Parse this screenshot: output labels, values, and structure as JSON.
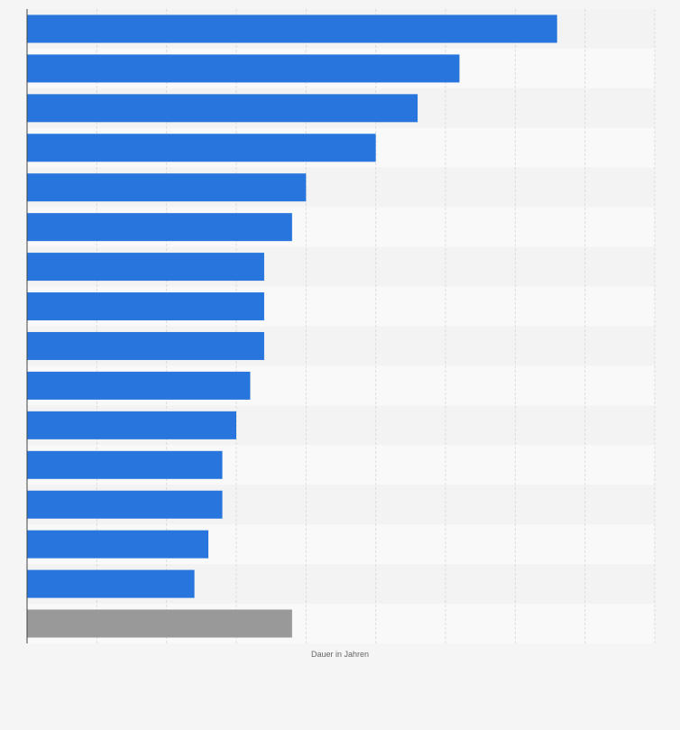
{
  "chart_data": {
    "type": "bar",
    "orientation": "horizontal",
    "xlabel": "Dauer in Jahren",
    "ylabel": "",
    "xlim": [
      0,
      9
    ],
    "grid": true,
    "legend": "none",
    "categories": [
      "",
      "",
      "",
      "",
      "",
      "",
      "",
      "",
      "",
      "",
      "",
      "",
      "",
      "",
      "",
      ""
    ],
    "values": [
      7.6,
      6.2,
      5.6,
      5.0,
      4.0,
      3.8,
      3.4,
      3.4,
      3.4,
      3.2,
      3.0,
      2.8,
      2.8,
      2.6,
      2.4,
      3.8
    ],
    "highlight_index": 15,
    "colors": {
      "bar": "#2876dd",
      "highlight_bar": "#999999",
      "band_dark": "#f3f3f3",
      "band_light": "#f9f9f9",
      "grid": "#dddddd",
      "axis": "#444444"
    }
  }
}
